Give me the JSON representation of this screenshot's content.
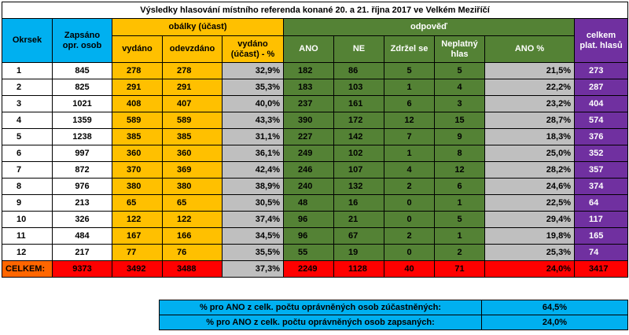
{
  "title": "Výsledky hlasování místního referenda konané 20. a 21. října 2017 ve Velkém Meziříčí",
  "headers": {
    "okrsek": "Okrsek",
    "zapsano": "Zapsáno opr. osob",
    "obalky": "obálky (účast)",
    "vydano": "vydáno",
    "odevzdano": "odevzdáno",
    "vydano_ucast": "vydáno (účast) - %",
    "odpoved": "odpověď",
    "ano": "ANO",
    "ne": "NE",
    "zdrzel": "Zdržel se",
    "neplatny": "Neplatný hlas",
    "ano_pct": "ANO %",
    "celkem_plat": "celkem plat. hlasů"
  },
  "rows": [
    [
      "1",
      "845",
      "278",
      "278",
      "32,9%",
      "182",
      "86",
      "5",
      "5",
      "21,5%",
      "273"
    ],
    [
      "2",
      "825",
      "291",
      "291",
      "35,3%",
      "183",
      "103",
      "1",
      "4",
      "22,2%",
      "287"
    ],
    [
      "3",
      "1021",
      "408",
      "407",
      "40,0%",
      "237",
      "161",
      "6",
      "3",
      "23,2%",
      "404"
    ],
    [
      "4",
      "1359",
      "589",
      "589",
      "43,3%",
      "390",
      "172",
      "12",
      "15",
      "28,7%",
      "574"
    ],
    [
      "5",
      "1238",
      "385",
      "385",
      "31,1%",
      "227",
      "142",
      "7",
      "9",
      "18,3%",
      "376"
    ],
    [
      "6",
      "997",
      "360",
      "360",
      "36,1%",
      "249",
      "102",
      "1",
      "8",
      "25,0%",
      "352"
    ],
    [
      "7",
      "872",
      "370",
      "369",
      "42,4%",
      "246",
      "107",
      "4",
      "12",
      "28,2%",
      "357"
    ],
    [
      "8",
      "976",
      "380",
      "380",
      "38,9%",
      "240",
      "132",
      "2",
      "6",
      "24,6%",
      "374"
    ],
    [
      "9",
      "213",
      "65",
      "65",
      "30,5%",
      "48",
      "16",
      "0",
      "1",
      "22,5%",
      "64"
    ],
    [
      "10",
      "326",
      "122",
      "122",
      "37,4%",
      "96",
      "21",
      "0",
      "5",
      "29,4%",
      "117"
    ],
    [
      "11",
      "484",
      "167",
      "166",
      "34,5%",
      "96",
      "67",
      "2",
      "1",
      "19,8%",
      "165"
    ],
    [
      "12",
      "217",
      "77",
      "76",
      "35,5%",
      "55",
      "19",
      "0",
      "2",
      "25,3%",
      "74"
    ]
  ],
  "total": [
    "CELKEM:",
    "9373",
    "3492",
    "3488",
    "37,3%",
    "2249",
    "1128",
    "40",
    "71",
    "24,0%",
    "3417"
  ],
  "summary": [
    {
      "label": "% pro ANO z celk. počtu oprávněných osob zúčastněných:",
      "value": "64,5%"
    },
    {
      "label": "% pro ANO z celk. počtu oprávněných osob zapsaných:",
      "value": "24,0%"
    }
  ]
}
